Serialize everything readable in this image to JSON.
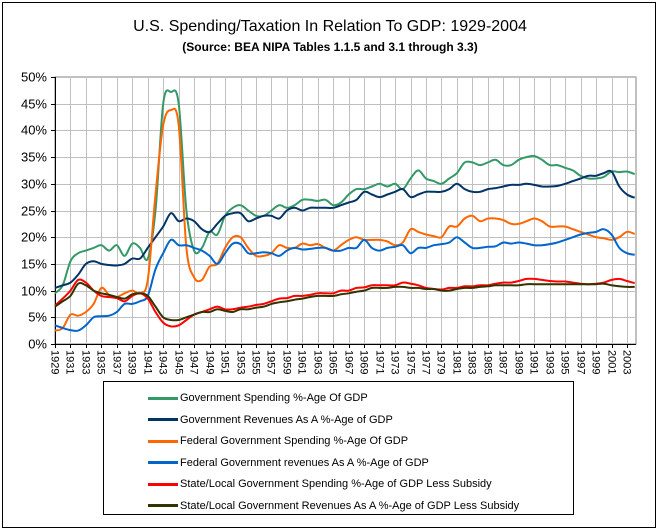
{
  "chart_data": {
    "type": "line",
    "title": "U.S. Spending/Taxation In Relation To GDP:  1929-2004",
    "subtitle": "(Source:  BEA NIPA Tables 1.1.5 and 3.1 through 3.3)",
    "xlabel": "",
    "ylabel": "",
    "ylim": [
      0,
      50
    ],
    "xlim": [
      1929,
      2004
    ],
    "y_ticks": [
      "0%",
      "5%",
      "10%",
      "15%",
      "20%",
      "25%",
      "30%",
      "35%",
      "40%",
      "45%",
      "50%"
    ],
    "x_ticks": [
      "1929",
      "1931",
      "1933",
      "1935",
      "1937",
      "1939",
      "1941",
      "1943",
      "1945",
      "1947",
      "1949",
      "1951",
      "1953",
      "1955",
      "1957",
      "1959",
      "1961",
      "1963",
      "1965",
      "1967",
      "1969",
      "1971",
      "1973",
      "1975",
      "1977",
      "1979",
      "1981",
      "1983",
      "1985",
      "1987",
      "1989",
      "1991",
      "1993",
      "1995",
      "1997",
      "1999",
      "2001",
      "2003"
    ],
    "grid": true,
    "legend_position": "bottom",
    "x": [
      1929,
      1930,
      1931,
      1932,
      1933,
      1934,
      1935,
      1936,
      1937,
      1938,
      1939,
      1940,
      1941,
      1942,
      1943,
      1944,
      1945,
      1946,
      1947,
      1948,
      1949,
      1950,
      1951,
      1952,
      1953,
      1954,
      1955,
      1956,
      1957,
      1958,
      1959,
      1960,
      1961,
      1962,
      1963,
      1964,
      1965,
      1966,
      1967,
      1968,
      1969,
      1970,
      1971,
      1972,
      1973,
      1974,
      1975,
      1976,
      1977,
      1978,
      1979,
      1980,
      1981,
      1982,
      1983,
      1984,
      1985,
      1986,
      1987,
      1988,
      1989,
      1990,
      1991,
      1992,
      1993,
      1994,
      1995,
      1996,
      1997,
      1998,
      1999,
      2000,
      2001,
      2002,
      2003,
      2004
    ],
    "series": [
      {
        "name": "Government Spending %-Age Of GDP",
        "color": "#339966",
        "values": [
          9.5,
          11,
          15.5,
          17,
          17.5,
          18,
          18.5,
          17.5,
          18.5,
          16.5,
          18.8,
          18,
          16,
          25,
          45,
          47.2,
          45,
          25,
          17.5,
          18,
          21,
          20.5,
          24,
          25.5,
          26,
          25,
          24,
          24,
          25,
          26,
          25.5,
          26,
          27,
          27,
          26.8,
          27,
          26,
          26.5,
          28,
          29,
          29,
          29.5,
          30,
          29.5,
          30,
          29,
          31,
          32.5,
          31,
          30.5,
          30,
          31,
          32,
          34,
          34,
          33.5,
          34,
          34.5,
          33.5,
          33.5,
          34.5,
          35,
          35.2,
          34.5,
          33.5,
          33.5,
          33,
          32.5,
          31.5,
          31,
          31,
          31.3,
          32.3,
          32.2,
          32.3,
          31.8
        ]
      },
      {
        "name": "Government Revenues As A %-Age of GDP",
        "color": "#003366",
        "values": [
          10.5,
          11,
          11.5,
          13,
          15,
          15.5,
          15,
          14.8,
          14.7,
          15,
          16,
          16,
          18,
          20,
          22,
          24.5,
          23,
          23.5,
          23,
          21.5,
          21,
          22.5,
          24,
          24.5,
          24.5,
          23,
          23.5,
          24,
          24,
          23.5,
          25,
          25.5,
          25,
          25.5,
          25.5,
          25.5,
          25.5,
          26,
          26.5,
          27,
          28.5,
          28,
          27.5,
          28,
          28.5,
          29,
          27.5,
          28,
          28.5,
          28.5,
          28.5,
          29,
          30,
          29,
          28.5,
          28.5,
          29,
          29.2,
          29.5,
          29.8,
          29.8,
          30,
          29.8,
          29.5,
          29.5,
          29.6,
          30,
          30.5,
          31,
          31.5,
          31.5,
          32,
          32.3,
          29.5,
          28,
          27.4
        ]
      },
      {
        "name": "Federal Government Spending %-Age Of GDP",
        "color": "#FF6600",
        "values": [
          2.5,
          3,
          5.5,
          5.3,
          6,
          7.5,
          10.5,
          9.2,
          8.8,
          9.5,
          10,
          9.5,
          12,
          28,
          41,
          43.8,
          41,
          18,
          12.5,
          12,
          14.5,
          15,
          18,
          20,
          20,
          18,
          16.5,
          16.5,
          17,
          18.5,
          18,
          18,
          18.8,
          18.5,
          18.7,
          18,
          17.5,
          18.5,
          19.5,
          20,
          19.5,
          19.5,
          19.5,
          19.2,
          18.5,
          19,
          21.5,
          21,
          20.5,
          20.2,
          20,
          22,
          22,
          23.5,
          24,
          23,
          23.5,
          23.5,
          23.2,
          22.5,
          22.5,
          23,
          23.5,
          23,
          22,
          22,
          22,
          21.5,
          21,
          20.5,
          20,
          19.8,
          19.5,
          20,
          21,
          20.6
        ]
      },
      {
        "name": "Federal Government revenues As A %-Age of GDP",
        "color": "#0066CC",
        "values": [
          3.5,
          3,
          2.6,
          2.5,
          3.5,
          5,
          5.2,
          5.3,
          6,
          7.5,
          7.5,
          8,
          9,
          14,
          17,
          19.5,
          18.5,
          18.5,
          18,
          17.5,
          16.5,
          15,
          17,
          18.8,
          18.7,
          17,
          17,
          17.2,
          17,
          16.5,
          17.5,
          18,
          17.7,
          17.8,
          18,
          18,
          17.5,
          17.5,
          18,
          18,
          19.5,
          18,
          17.5,
          18,
          18.2,
          18.5,
          17,
          18,
          18,
          18.5,
          18.7,
          19,
          20,
          19,
          18,
          18,
          18.2,
          18.3,
          19,
          18.8,
          19,
          18.8,
          18.5,
          18.5,
          18.7,
          19,
          19.5,
          20,
          20.5,
          20.8,
          21,
          21.5,
          20.5,
          18,
          17,
          16.7
        ]
      },
      {
        "name": "State/Local Government Spending %-Age of GDP Less Subsidy",
        "color": "#FF0000",
        "values": [
          7.2,
          8.5,
          10,
          12,
          11.5,
          10,
          9,
          8.8,
          8.6,
          8,
          9,
          9.5,
          8.5,
          6,
          4,
          3.3,
          3.5,
          4.5,
          5.5,
          6,
          6.5,
          7,
          6.5,
          6.5,
          6.8,
          7,
          7.3,
          7.5,
          8,
          8.5,
          8.6,
          9,
          9,
          9.2,
          9.5,
          9.5,
          9.5,
          10,
          10,
          10.5,
          10.6,
          11,
          11,
          11,
          11,
          11.5,
          11.3,
          11,
          10.5,
          10.3,
          10.2,
          10.5,
          10.5,
          10.8,
          10.8,
          11,
          11,
          11.3,
          11.5,
          11.5,
          11.8,
          12.2,
          12.2,
          12,
          11.8,
          11.7,
          11.7,
          11.5,
          11.3,
          11.2,
          11.3,
          11.5,
          12,
          12.2,
          11.8,
          11.4
        ]
      },
      {
        "name": "State/Local Government Revenues As A %-Age of GDP Less Subsidy",
        "color": "#333300",
        "values": [
          7,
          8,
          9,
          11.3,
          11,
          10,
          9.5,
          9.2,
          8.8,
          8.5,
          9.3,
          9.5,
          9,
          7,
          5,
          4.5,
          4.5,
          5,
          5.5,
          6,
          6,
          6.5,
          6.2,
          6,
          6.5,
          6.5,
          6.8,
          7,
          7.5,
          7.8,
          8,
          8.3,
          8.5,
          8.8,
          9,
          9,
          9,
          9.3,
          9.5,
          9.8,
          10,
          10.5,
          10.5,
          10.5,
          10.7,
          10.7,
          10.5,
          10.5,
          10.3,
          10.3,
          10,
          10,
          10.3,
          10.5,
          10.5,
          10.7,
          10.8,
          11,
          11,
          11,
          11,
          11.2,
          11.2,
          11.2,
          11.2,
          11.2,
          11.2,
          11.2,
          11.2,
          11.2,
          11.2,
          11.3,
          11,
          10.8,
          10.7,
          10.7
        ]
      }
    ]
  }
}
